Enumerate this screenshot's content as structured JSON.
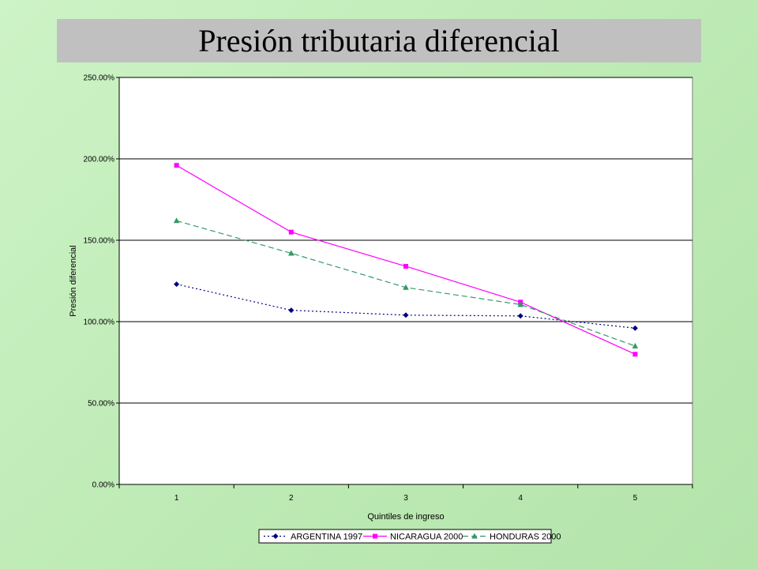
{
  "slide": {
    "title": "Presión tributaria diferencial"
  },
  "chart_data": {
    "type": "line",
    "title": "",
    "xlabel": "Quintiles de ingreso",
    "ylabel": "Presión diferencial",
    "x": [
      1,
      2,
      3,
      4,
      5
    ],
    "x_tick_labels": [
      "1",
      "2",
      "3",
      "4",
      "5"
    ],
    "ylim": [
      0,
      2.5
    ],
    "y_ticks": [
      0,
      0.5,
      1.0,
      1.5,
      2.0,
      2.5
    ],
    "y_tick_labels": [
      "0.00%",
      "50.00%",
      "100.00%",
      "150.00%",
      "200.00%",
      "250.00%"
    ],
    "grid": "horizontal",
    "legend_position": "bottom",
    "series": [
      {
        "name": "ARGENTINA 1997",
        "values": [
          1.23,
          1.07,
          1.04,
          1.035,
          0.96
        ],
        "color": "#000080",
        "marker": "diamond",
        "line_style": "dotted"
      },
      {
        "name": "NICARAGUA 2000",
        "values": [
          1.96,
          1.55,
          1.34,
          1.12,
          0.8
        ],
        "color": "#ff00ff",
        "marker": "square",
        "line_style": "solid"
      },
      {
        "name": "HONDURAS 2000",
        "values": [
          1.62,
          1.42,
          1.21,
          1.105,
          0.85
        ],
        "color": "#339966",
        "marker": "triangle",
        "line_style": "dashed"
      }
    ]
  }
}
